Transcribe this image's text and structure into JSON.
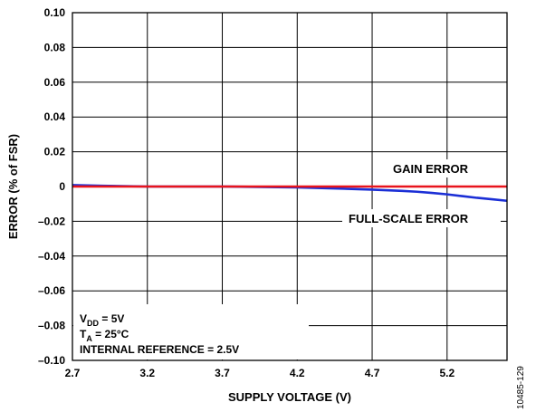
{
  "chart_data": {
    "type": "line",
    "title": "",
    "xlabel": "SUPPLY VOLTAGE (V)",
    "ylabel": "ERROR (% of FSR)",
    "xlim": [
      2.7,
      5.6
    ],
    "ylim": [
      -0.1,
      0.1
    ],
    "grid": true,
    "x_ticks": [
      "2.7",
      "3.2",
      "3.7",
      "4.2",
      "4.7",
      "5.2"
    ],
    "y_ticks": [
      "0.10",
      "0.08",
      "0.06",
      "0.04",
      "0.02",
      "0",
      "–0.02",
      "–0.04",
      "–0.06",
      "–0.08",
      "–0.10"
    ],
    "series": [
      {
        "name": "GAIN ERROR",
        "color": "#e8141c",
        "x": [
          2.7,
          3.2,
          3.7,
          4.2,
          4.7,
          5.2,
          5.6
        ],
        "y": [
          0,
          0,
          0,
          0,
          0,
          0,
          0
        ]
      },
      {
        "name": "FULL-SCALE ERROR",
        "color": "#1b2fd6",
        "x": [
          2.7,
          2.9,
          3.2,
          3.7,
          4.2,
          4.5,
          4.7,
          4.9,
          5.0,
          5.1,
          5.2,
          5.3,
          5.4,
          5.5,
          5.6
        ],
        "y": [
          0.0008,
          0.0004,
          0.0,
          0.0,
          -0.0005,
          -0.0012,
          -0.0018,
          -0.0025,
          -0.003,
          -0.0037,
          -0.0045,
          -0.0055,
          -0.0065,
          -0.0073,
          -0.0082
        ]
      }
    ],
    "annotations": {
      "conditions": [
        {
          "main": "V",
          "sub": "DD",
          "rest": " = 5V"
        },
        {
          "main": "T",
          "sub": "A",
          "rest": " = 25°C"
        },
        {
          "main": "INTERNAL REFERENCE = 2.5V",
          "sub": "",
          "rest": ""
        }
      ],
      "figure_id": "10485-129"
    }
  }
}
